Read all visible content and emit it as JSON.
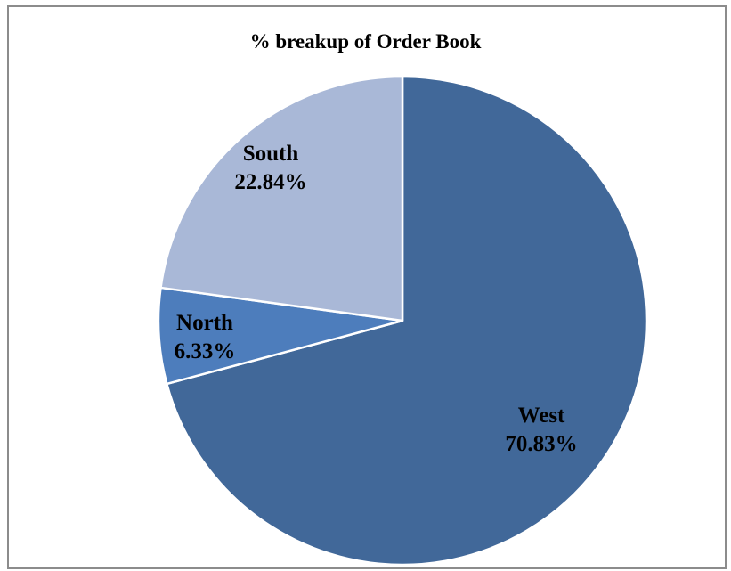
{
  "chart_data": {
    "type": "pie",
    "title": "% breakup of Order Book",
    "slices": [
      {
        "label": "West",
        "value": 70.83,
        "value_label": "70.83%",
        "color": "#416899"
      },
      {
        "label": "North",
        "value": 6.33,
        "value_label": "6.33%",
        "color": "#4d7dbc"
      },
      {
        "label": "South",
        "value": 22.84,
        "value_label": "22.84%",
        "color": "#a9b8d7"
      }
    ],
    "start_angle": "12 o'clock",
    "direction": "clockwise",
    "slice_border_color": "#ffffff"
  }
}
